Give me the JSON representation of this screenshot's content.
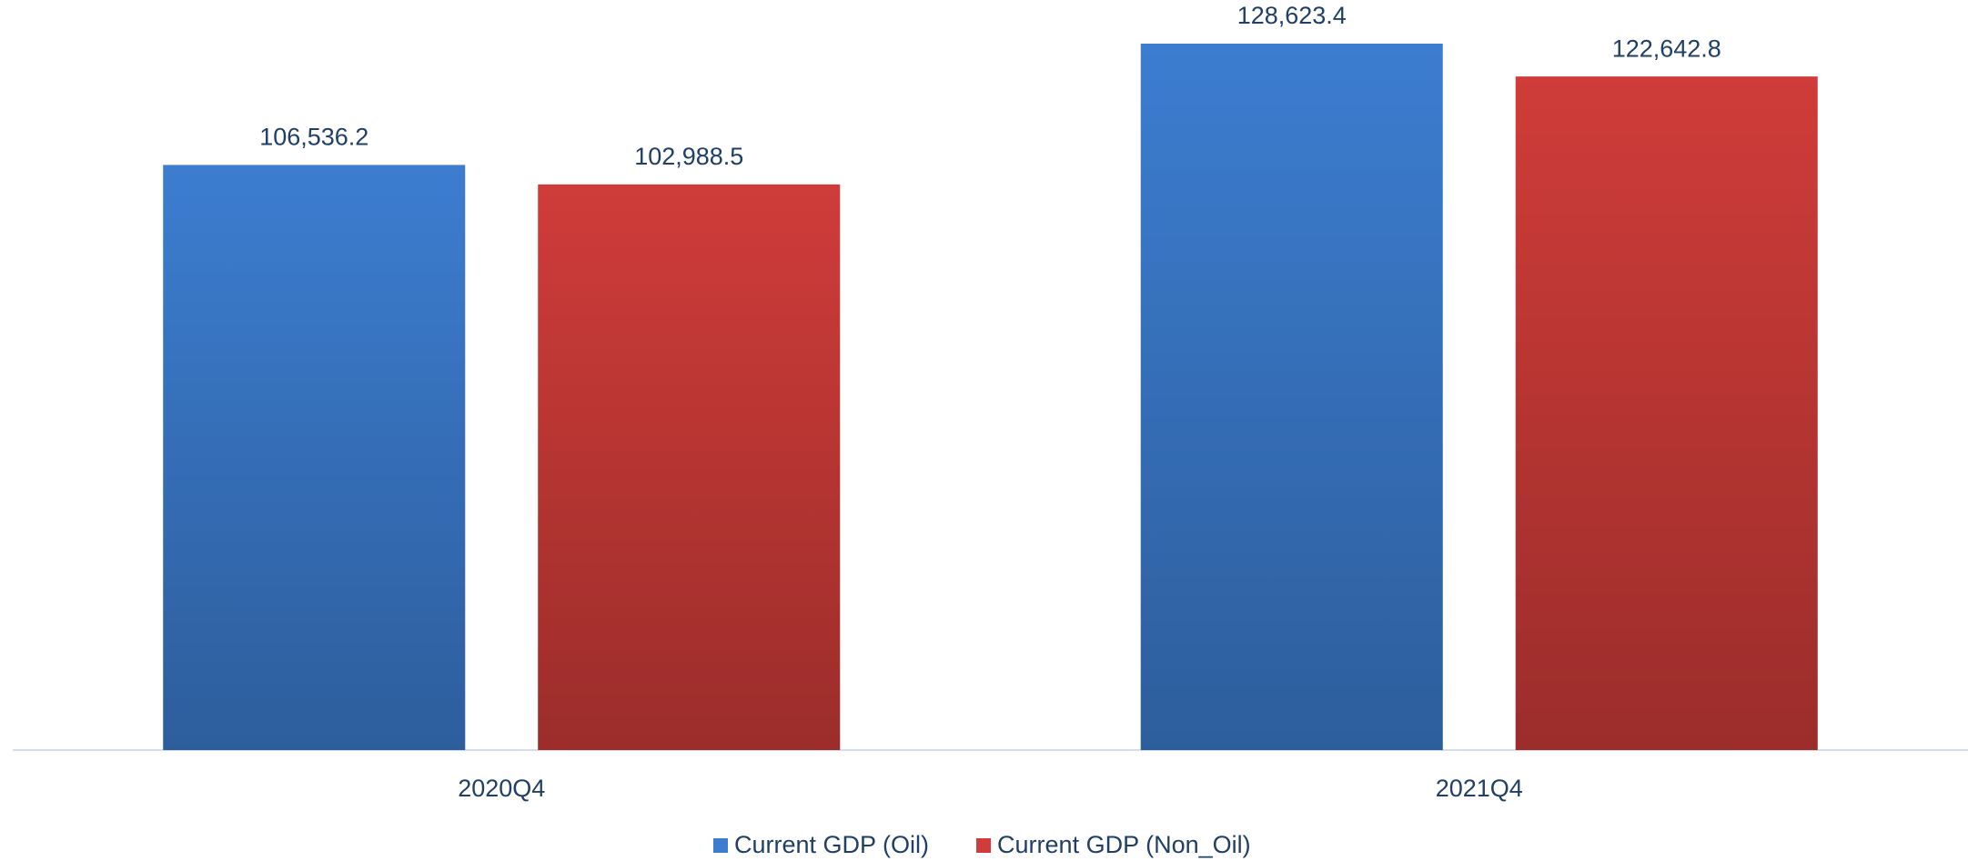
{
  "chart_data": {
    "type": "bar",
    "categories": [
      "2020Q4",
      "2021Q4"
    ],
    "series": [
      {
        "name": "Current GDP (Oil)",
        "color": "#3c7dd0",
        "values": [
          106536.2,
          128623.4
        ],
        "value_labels": [
          "106,536.2",
          "128,623.4"
        ]
      },
      {
        "name": "Current GDP (Non_Oil)",
        "color": "#cf3c39",
        "values": [
          102988.5,
          122642.8
        ],
        "value_labels": [
          "102,988.5",
          "122,642.8"
        ]
      }
    ],
    "legend": "bottom"
  }
}
